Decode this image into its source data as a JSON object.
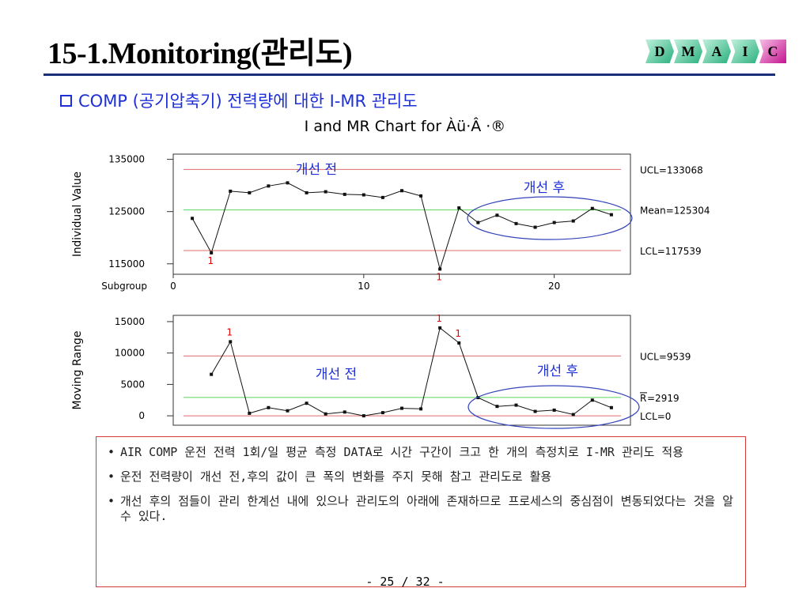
{
  "header": {
    "title": "15-1.Monitoring(관리도)",
    "badge": [
      "D",
      "M",
      "A",
      "I",
      "C"
    ]
  },
  "subtitle": "COMP (공기압축기) 전력량에 대한 I-MR 관리도",
  "chart_title": "I and MR Chart for Àü·Â ·®",
  "chart_data": [
    {
      "type": "line",
      "name": "individual",
      "ylabel": "Individual Value",
      "xlabel": "Subgroup",
      "x_ticks": [
        0,
        10,
        20
      ],
      "y_ticks": [
        115000,
        125000,
        135000
      ],
      "xlim": [
        0,
        24
      ],
      "ylim": [
        113000,
        136000
      ],
      "x": [
        1,
        2,
        3,
        4,
        5,
        6,
        7,
        8,
        9,
        10,
        11,
        12,
        13,
        14,
        15,
        16,
        17,
        18,
        19,
        20,
        21,
        22,
        23
      ],
      "values": [
        123700,
        117100,
        128900,
        128600,
        129900,
        130500,
        128600,
        128800,
        128300,
        128200,
        127700,
        129000,
        128000,
        114000,
        125700,
        122900,
        124300,
        122700,
        122000,
        122900,
        123200,
        125600,
        124400
      ],
      "out_of_control": [
        2,
        14
      ],
      "limits": {
        "UCL": 133068,
        "Mean": 125304,
        "LCL": 117539
      },
      "limit_labels": {
        "UCL": "UCL=133068",
        "Mean": "Mean=125304",
        "LCL": "LCL=117539"
      },
      "annotations": {
        "before": "개선 전",
        "after": "개선 후",
        "flag": "1"
      }
    },
    {
      "type": "line",
      "name": "moving-range",
      "ylabel": "Moving Range",
      "y_ticks": [
        0,
        5000,
        10000,
        15000
      ],
      "xlim": [
        0,
        24
      ],
      "ylim": [
        -1500,
        16000
      ],
      "x": [
        2,
        3,
        4,
        5,
        6,
        7,
        8,
        9,
        10,
        11,
        12,
        13,
        14,
        15,
        16,
        17,
        18,
        19,
        20,
        21,
        22,
        23
      ],
      "values": [
        6600,
        11800,
        400,
        1300,
        800,
        2000,
        300,
        600,
        0,
        500,
        1200,
        1100,
        14000,
        11600,
        2900,
        1500,
        1700,
        700,
        900,
        200,
        2500,
        1300
      ],
      "out_of_control": [
        3,
        14,
        15
      ],
      "limits": {
        "UCL": 9539,
        "R": 2919,
        "LCL": 0
      },
      "limit_labels": {
        "UCL": "UCL=9539",
        "R_prefix": "R",
        "R_value": "=2919",
        "LCL": "LCL=0"
      },
      "annotations": {
        "before": "개선 전",
        "after": "개선 후",
        "flag": "1"
      }
    }
  ],
  "notes": [
    "AIR COMP 운전 전력 1회/일 평균 측정 DATA로 시간 구간이 크고 한 개의 측정치로 I-MR 관리도 적용",
    "운전 전력량이 개선 전,후의 값이 큰 폭의 변화를 주지 못해 참고 관리도로 활용",
    "개선 후의 점들이 관리 한계선 내에 있으나 관리도의 아래에 존재하므로 프로세스의 중심점이 변동되었다는 것을 알 수 있다."
  ],
  "page_number": "- 25 / 32 -",
  "colors": {
    "title_rule": "#1a2f7a",
    "accent_text": "#1d2fd6",
    "limit_line": "#e06b6b",
    "center_line": "#5bd65b",
    "flag": "#e00000",
    "ellipse": "#3344bb",
    "note_border": "#d83a3a"
  }
}
